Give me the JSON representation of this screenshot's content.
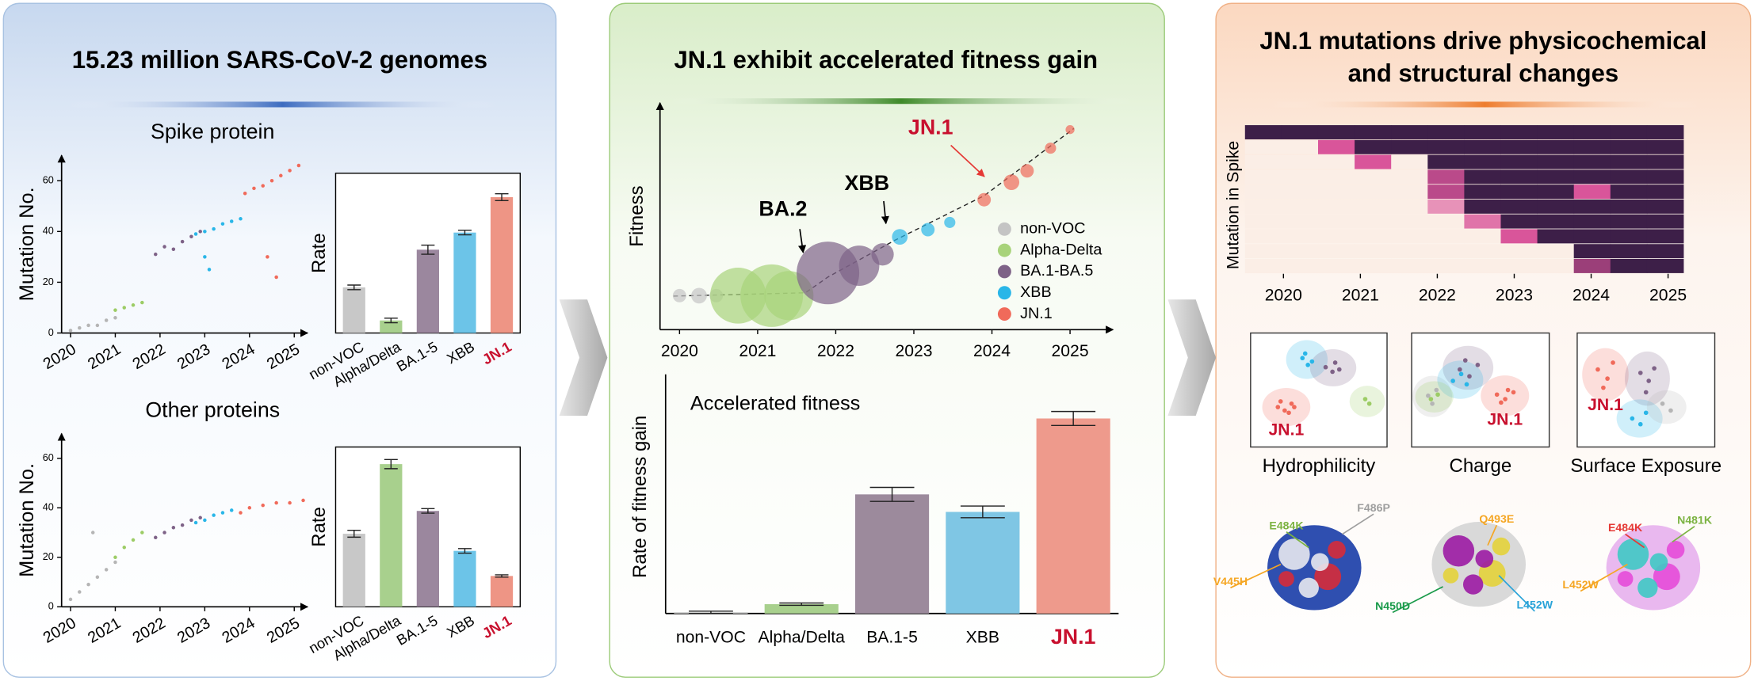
{
  "panels": [
    {
      "title": "15.23 million SARS-CoV-2 genomes",
      "charts": [
        {
          "type": "scatter",
          "title": "Spike protein",
          "ylabel": "Mutation No.",
          "xlim": [
            2019.8,
            2025.3
          ],
          "xticks": [
            2020,
            2021,
            2022,
            2023,
            2024,
            2025
          ],
          "ylim": [
            0,
            70
          ],
          "yticks": [
            0,
            20,
            40,
            60
          ],
          "series": [
            {
              "color": "#b5b5b5",
              "x": [
                2020.0,
                2020.2,
                2020.4,
                2020.6,
                2020.8,
                2021.0
              ],
              "y": [
                1,
                2,
                3,
                3,
                5,
                6
              ]
            },
            {
              "color": "#9ccc65",
              "x": [
                2021.0,
                2021.2,
                2021.4,
                2021.6
              ],
              "y": [
                9,
                10,
                11,
                12
              ]
            },
            {
              "color": "#7e6287",
              "x": [
                2021.9,
                2022.1,
                2022.3,
                2022.5,
                2022.7,
                2022.9
              ],
              "y": [
                31,
                34,
                33,
                36,
                38,
                40
              ]
            },
            {
              "color": "#29b6e8",
              "x": [
                2022.8,
                2023.0,
                2023.2,
                2023.4,
                2023.6,
                2023.8,
                2023.0,
                2023.1
              ],
              "y": [
                39,
                40,
                41,
                43,
                44,
                45,
                30,
                25
              ]
            },
            {
              "color": "#f06a5a",
              "x": [
                2023.9,
                2024.1,
                2024.3,
                2024.5,
                2024.7,
                2024.9,
                2025.1,
                2024.4,
                2024.6
              ],
              "y": [
                55,
                57,
                58,
                60,
                62,
                64,
                66,
                30,
                22
              ]
            }
          ]
        },
        {
          "type": "bar",
          "ylabel": "Rate",
          "ylim": [
            0,
            140
          ],
          "categories": [
            "non-VOC",
            "Alpha/Delta",
            "BA.1-5",
            "XBB",
            "JN.1"
          ],
          "label_colors": [
            "#000000",
            "#000000",
            "#000000",
            "#000000",
            "#c8102e"
          ],
          "colors": [
            "#c8c8c8",
            "#a8d08d",
            "#9b879e",
            "#6cc4e8",
            "#ee9585"
          ],
          "values": [
            40,
            11,
            73,
            88,
            119
          ],
          "errors": [
            2,
            2,
            4,
            2,
            3
          ]
        },
        {
          "type": "scatter",
          "title": "Other proteins",
          "ylabel": "Mutation No.",
          "xlim": [
            2019.8,
            2025.3
          ],
          "xticks": [
            2020,
            2021,
            2022,
            2023,
            2024,
            2025
          ],
          "ylim": [
            0,
            70
          ],
          "yticks": [
            0,
            20,
            40,
            60
          ],
          "series": [
            {
              "color": "#b5b5b5",
              "x": [
                2020.0,
                2020.2,
                2020.4,
                2020.6,
                2020.8,
                2021.0,
                2020.5
              ],
              "y": [
                3,
                6,
                9,
                12,
                15,
                18,
                30
              ]
            },
            {
              "color": "#9ccc65",
              "x": [
                2021.0,
                2021.2,
                2021.4,
                2021.6
              ],
              "y": [
                20,
                24,
                27,
                30
              ]
            },
            {
              "color": "#7e6287",
              "x": [
                2021.9,
                2022.1,
                2022.3,
                2022.5,
                2022.7,
                2022.9
              ],
              "y": [
                28,
                30,
                32,
                33,
                35,
                36
              ]
            },
            {
              "color": "#29b6e8",
              "x": [
                2022.8,
                2023.0,
                2023.2,
                2023.4,
                2023.6
              ],
              "y": [
                34,
                35,
                37,
                38,
                39
              ]
            },
            {
              "color": "#f06a5a",
              "x": [
                2023.8,
                2024.0,
                2024.3,
                2024.6,
                2024.9,
                2025.2
              ],
              "y": [
                38,
                40,
                41,
                42,
                42,
                43
              ]
            }
          ]
        },
        {
          "type": "bar",
          "ylabel": "Rate",
          "ylim": [
            0,
            140
          ],
          "categories": [
            "non-VOC",
            "Alpha/Delta",
            "BA.1-5",
            "XBB",
            "JN.1"
          ],
          "label_colors": [
            "#000000",
            "#000000",
            "#000000",
            "#000000",
            "#c8102e"
          ],
          "colors": [
            "#c8c8c8",
            "#a8d08d",
            "#9b879e",
            "#6cc4e8",
            "#ee9585"
          ],
          "values": [
            64,
            125,
            84,
            49,
            27
          ],
          "errors": [
            3,
            4,
            2,
            2,
            1
          ]
        }
      ]
    },
    {
      "title": "JN.1 exhibit accelerated fitness gain",
      "charts": [
        {
          "type": "scatter",
          "ylabel": "Fitness",
          "xlim": [
            2019.75,
            2025.55
          ],
          "xticks": [
            2020,
            2021,
            2022,
            2023,
            2024,
            2025
          ],
          "ylim": [
            0,
            110
          ],
          "legend": "right",
          "series": [
            {
              "name": "non-VOC",
              "color": "#c4c4c4",
              "x": [
                2020.0,
                2020.25,
                2020.47
              ],
              "y": [
                16.5,
                16.5,
                16.5
              ],
              "size": [
                6,
                7,
                6
              ]
            },
            {
              "name": "Alpha-Delta",
              "color": "#a8d37a",
              "x": [
                2020.75,
                2021.18,
                2021.4
              ],
              "y": [
                16.5,
                16.5,
                16.5
              ],
              "size": [
                25,
                28,
                22
              ]
            },
            {
              "name": "BA.1-BA.5",
              "color": "#7e6287",
              "x": [
                2021.9,
                2022.3,
                2022.6
              ],
              "y": [
                27.5,
                31,
                36.5
              ],
              "size": [
                28,
                18,
                10
              ]
            },
            {
              "name": "XBB",
              "color": "#29b6e8",
              "x": [
                2022.82,
                2023.18,
                2023.46
              ],
              "y": [
                45,
                48.5,
                52
              ],
              "size": [
                7,
                6,
                5
              ]
            },
            {
              "name": "JN.1",
              "color": "#f06a5a",
              "x": [
                2023.9,
                2024.25,
                2024.45,
                2024.75,
                2025.0
              ],
              "y": [
                63,
                71.5,
                77,
                88,
                97
              ],
              "size": [
                6,
                7,
                6,
                5,
                4
              ]
            }
          ],
          "annotations": [
            {
              "text": "BA.2",
              "color": "#000000"
            },
            {
              "text": "XBB",
              "color": "#000000"
            },
            {
              "text": "JN.1",
              "color": "#c8102e"
            }
          ]
        },
        {
          "type": "bar",
          "title": "Accelerated fitness",
          "ylabel": "Rate of fitness gain",
          "ylim": [
            0,
            200
          ],
          "categories": [
            "non-VOC",
            "Alpha/Delta",
            "BA.1-5",
            "XBB",
            "JN.1"
          ],
          "label_colors": [
            "#000000",
            "#000000",
            "#000000",
            "#000000",
            "#c8102e"
          ],
          "colors": [
            "#c4c4c4",
            "#a8d08d",
            "#9c8a9c",
            "#7fc6e4",
            "#ee9a8c"
          ],
          "values": [
            1,
            8,
            102,
            87,
            167
          ],
          "errors": [
            1,
            1,
            6,
            5,
            6
          ]
        }
      ]
    },
    {
      "title_lines": [
        "JN.1 mutations drive physicochemical",
        "and structural changes"
      ],
      "charts": [
        {
          "type": "heatmap",
          "ylabel": "Mutation in Spike",
          "xlim": [
            2019.5,
            2025.2
          ],
          "xticks": [
            2020,
            2021,
            2022,
            2023,
            2024,
            2025
          ],
          "zlim": [
            0,
            1
          ],
          "values": [
            [
              1,
              1,
              1,
              1,
              1,
              1,
              1,
              1,
              1,
              1,
              1,
              1
            ],
            [
              0,
              0,
              0.5,
              1,
              1,
              1,
              1,
              1,
              1,
              1,
              1,
              1
            ],
            [
              0,
              0,
              0,
              0.5,
              0,
              1,
              1,
              1,
              1,
              1,
              1,
              1
            ],
            [
              0,
              0,
              0,
              0,
              0,
              0.6,
              1,
              1,
              1,
              1,
              1,
              1
            ],
            [
              0,
              0,
              0,
              0,
              0,
              0.6,
              1,
              1,
              1,
              0.5,
              1,
              1
            ],
            [
              0,
              0,
              0,
              0,
              0,
              0.3,
              1,
              1,
              1,
              1,
              1,
              1
            ],
            [
              0,
              0,
              0,
              0,
              0,
              0,
              0.4,
              1,
              1,
              1,
              1,
              1
            ],
            [
              0,
              0,
              0,
              0,
              0,
              0,
              0,
              0.5,
              1,
              1,
              1,
              1
            ],
            [
              0,
              0,
              0,
              0,
              0,
              0,
              0,
              0,
              0,
              1,
              1,
              1
            ],
            [
              0,
              0,
              0,
              0,
              0,
              0,
              0,
              0,
              0,
              0.7,
              1,
              1
            ]
          ]
        },
        {
          "type": "cluster",
          "title": "Hydrophilicity",
          "label": "JN.1",
          "xlim": [
            0,
            10
          ],
          "ylim": [
            0,
            10
          ],
          "series": [
            {
              "color": "#f06a5a",
              "x": [
                2.0,
                2.5,
                3.0,
                2.2,
                2.8,
                3.2
              ],
              "y": [
                3.5,
                3.2,
                3.8,
                4.0,
                3.0,
                3.5
              ]
            },
            {
              "color": "#29b6e8",
              "x": [
                3.8,
                4.2,
                4.5,
                4.0
              ],
              "y": [
                7.8,
                7.2,
                7.5,
                8.2
              ]
            },
            {
              "color": "#7e6287",
              "x": [
                5.5,
                6.0,
                6.5,
                6.2
              ],
              "y": [
                7.0,
                6.6,
                6.8,
                7.4
              ]
            },
            {
              "color": "#9ccc65",
              "x": [
                8.4,
                8.7
              ],
              "y": [
                4.2,
                3.8
              ]
            }
          ]
        },
        {
          "type": "cluster",
          "title": "Charge",
          "label": "JN.1",
          "xlim": [
            0,
            10
          ],
          "ylim": [
            0,
            10
          ],
          "series": [
            {
              "color": "#b5b5b5",
              "x": [
                1.2,
                1.8,
                1.5
              ],
              "y": [
                4.5,
                5.0,
                3.8
              ]
            },
            {
              "color": "#7e6287",
              "x": [
                3.5,
                4.2,
                4.8,
                3.9
              ],
              "y": [
                6.8,
                6.2,
                7.2,
                7.6
              ]
            },
            {
              "color": "#29b6e8",
              "x": [
                3.0,
                3.6,
                4.0
              ],
              "y": [
                5.8,
                6.4,
                5.5
              ]
            },
            {
              "color": "#f06a5a",
              "x": [
                6.2,
                6.8,
                7.4,
                7.0,
                6.5
              ],
              "y": [
                4.6,
                4.2,
                4.8,
                5.0,
                3.9
              ]
            },
            {
              "color": "#9ccc65",
              "x": [
                1.4,
                1.9
              ],
              "y": [
                4.2,
                4.6
              ]
            }
          ]
        },
        {
          "type": "cluster",
          "title": "Surface Exposure",
          "label": "JN.1",
          "xlim": [
            0,
            10
          ],
          "ylim": [
            0,
            10
          ],
          "series": [
            {
              "color": "#f06a5a",
              "x": [
                1.5,
                2.2,
                2.6,
                1.9
              ],
              "y": [
                6.8,
                6.0,
                7.4,
                5.2
              ]
            },
            {
              "color": "#7e6287",
              "x": [
                4.6,
                5.2,
                5.0,
                5.6
              ],
              "y": [
                6.5,
                5.8,
                4.8,
                6.9
              ]
            },
            {
              "color": "#29b6e8",
              "x": [
                4.0,
                4.6,
                5.0
              ],
              "y": [
                2.5,
                2.0,
                3.0
              ]
            },
            {
              "color": "#b5b5b5",
              "x": [
                6.2,
                6.8
              ],
              "y": [
                3.8,
                3.2
              ]
            }
          ]
        },
        {
          "type": "structure",
          "mutations": [
            {
              "text": "F486P",
              "color": "#9e9e9e"
            },
            {
              "text": "E484K",
              "color": "#7cb342"
            },
            {
              "text": "V445H",
              "color": "#f5a623"
            }
          ]
        },
        {
          "type": "structure",
          "mutations": [
            {
              "text": "Q493E",
              "color": "#f5a623"
            },
            {
              "text": "N450D",
              "color": "#1a9a4a"
            },
            {
              "text": "L452W",
              "color": "#29a3d8"
            }
          ]
        },
        {
          "type": "structure",
          "mutations": [
            {
              "text": "E484K",
              "color": "#e53935"
            },
            {
              "text": "N481K",
              "color": "#7cb342"
            },
            {
              "text": "L452W",
              "color": "#f5a623"
            }
          ]
        }
      ]
    }
  ]
}
